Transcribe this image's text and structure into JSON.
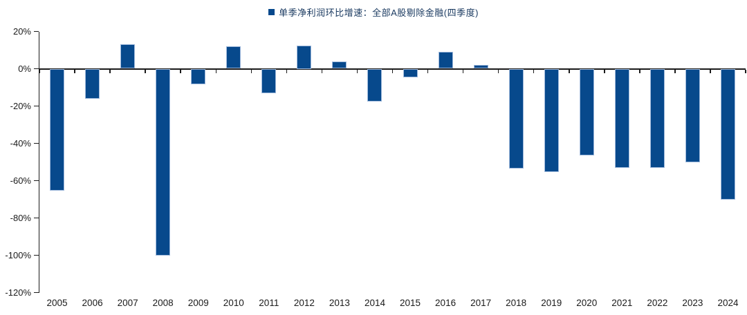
{
  "legend": {
    "label": "单季净利润环比增速：全部A股剔除金融(四季度)"
  },
  "chart_data": {
    "type": "bar",
    "title": "",
    "xlabel": "",
    "ylabel": "",
    "categories": [
      "2005",
      "2006",
      "2007",
      "2008",
      "2009",
      "2010",
      "2011",
      "2012",
      "2013",
      "2014",
      "2015",
      "2016",
      "2017",
      "2018",
      "2019",
      "2020",
      "2021",
      "2022",
      "2023",
      "2024"
    ],
    "series": [
      {
        "name": "单季净利润环比增速：全部A股剔除金融(四季度)",
        "values": [
          -65.5,
          -16,
          13,
          -100,
          -8.5,
          12,
          -13,
          12.5,
          4,
          -17.5,
          -4.5,
          9,
          2,
          -53.5,
          -55.5,
          -46.5,
          -53,
          -53,
          -50,
          -70
        ]
      }
    ],
    "value_unit": "%",
    "ylim": [
      -120,
      20
    ],
    "y_tick_step": 20,
    "y_tick_labels": [
      "20%",
      "0%",
      "-20%",
      "-40%",
      "-60%",
      "-80%",
      "-100%",
      "-120%"
    ],
    "grid": false,
    "legend_position": "top-center",
    "colors": {
      "bar_fill": "#07498C",
      "bar_border": "#9FB9DC",
      "axis": "#1a1a1a",
      "legend_text": "#17375E",
      "tick_text": "#1a1a1a"
    }
  }
}
